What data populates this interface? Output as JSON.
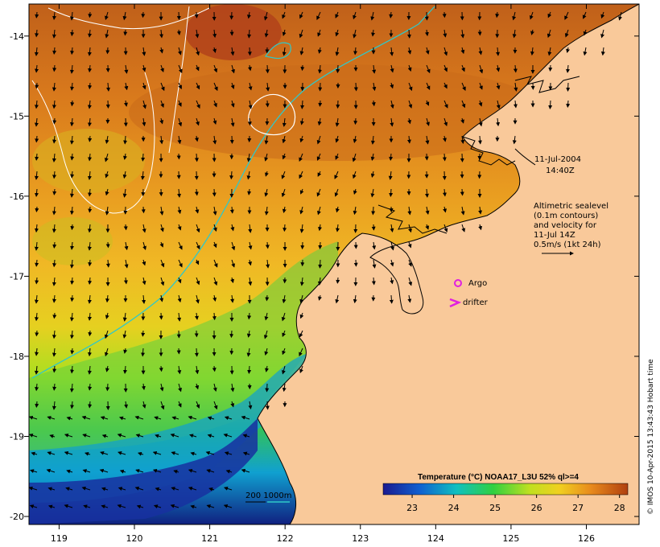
{
  "map": {
    "lon_ticks": [
      "119",
      "120",
      "121",
      "122",
      "123",
      "124",
      "125",
      "126"
    ],
    "lat_ticks": [
      "-14",
      "-15",
      "-16",
      "-17",
      "-18",
      "-19",
      "-20"
    ],
    "lon_range": [
      118.6,
      126.7
    ],
    "lat_range": [
      -20.1,
      -13.6
    ]
  },
  "annotations": {
    "date": "11-Jul-2004",
    "time": "14:40Z",
    "legend_line1": "Altimetric sealevel",
    "legend_line2": "(0.1m contours)",
    "legend_line3": "and velocity for",
    "legend_line4": "11-Jul 14Z",
    "legend_line5": "0.5m/s (1kt 24h)",
    "argo_label": "Argo",
    "drifter_label": "drifter",
    "bathy_label": "200  1000m"
  },
  "colorbar": {
    "title": "Temperature (°C) NOAA17_L3U 52% ql>=4",
    "ticks": [
      "23",
      "24",
      "25",
      "26",
      "27",
      "28"
    ],
    "range": [
      22.3,
      28.2
    ]
  },
  "credit": "© IMOS 10-Apr-2015 13:43:43 Hobart time",
  "colors": {
    "land": "#f9c99a",
    "argo": "#e020e0",
    "drifter": "#e020e0",
    "isobath": "#30c8c8",
    "ssh_contour": "#ffffff"
  }
}
